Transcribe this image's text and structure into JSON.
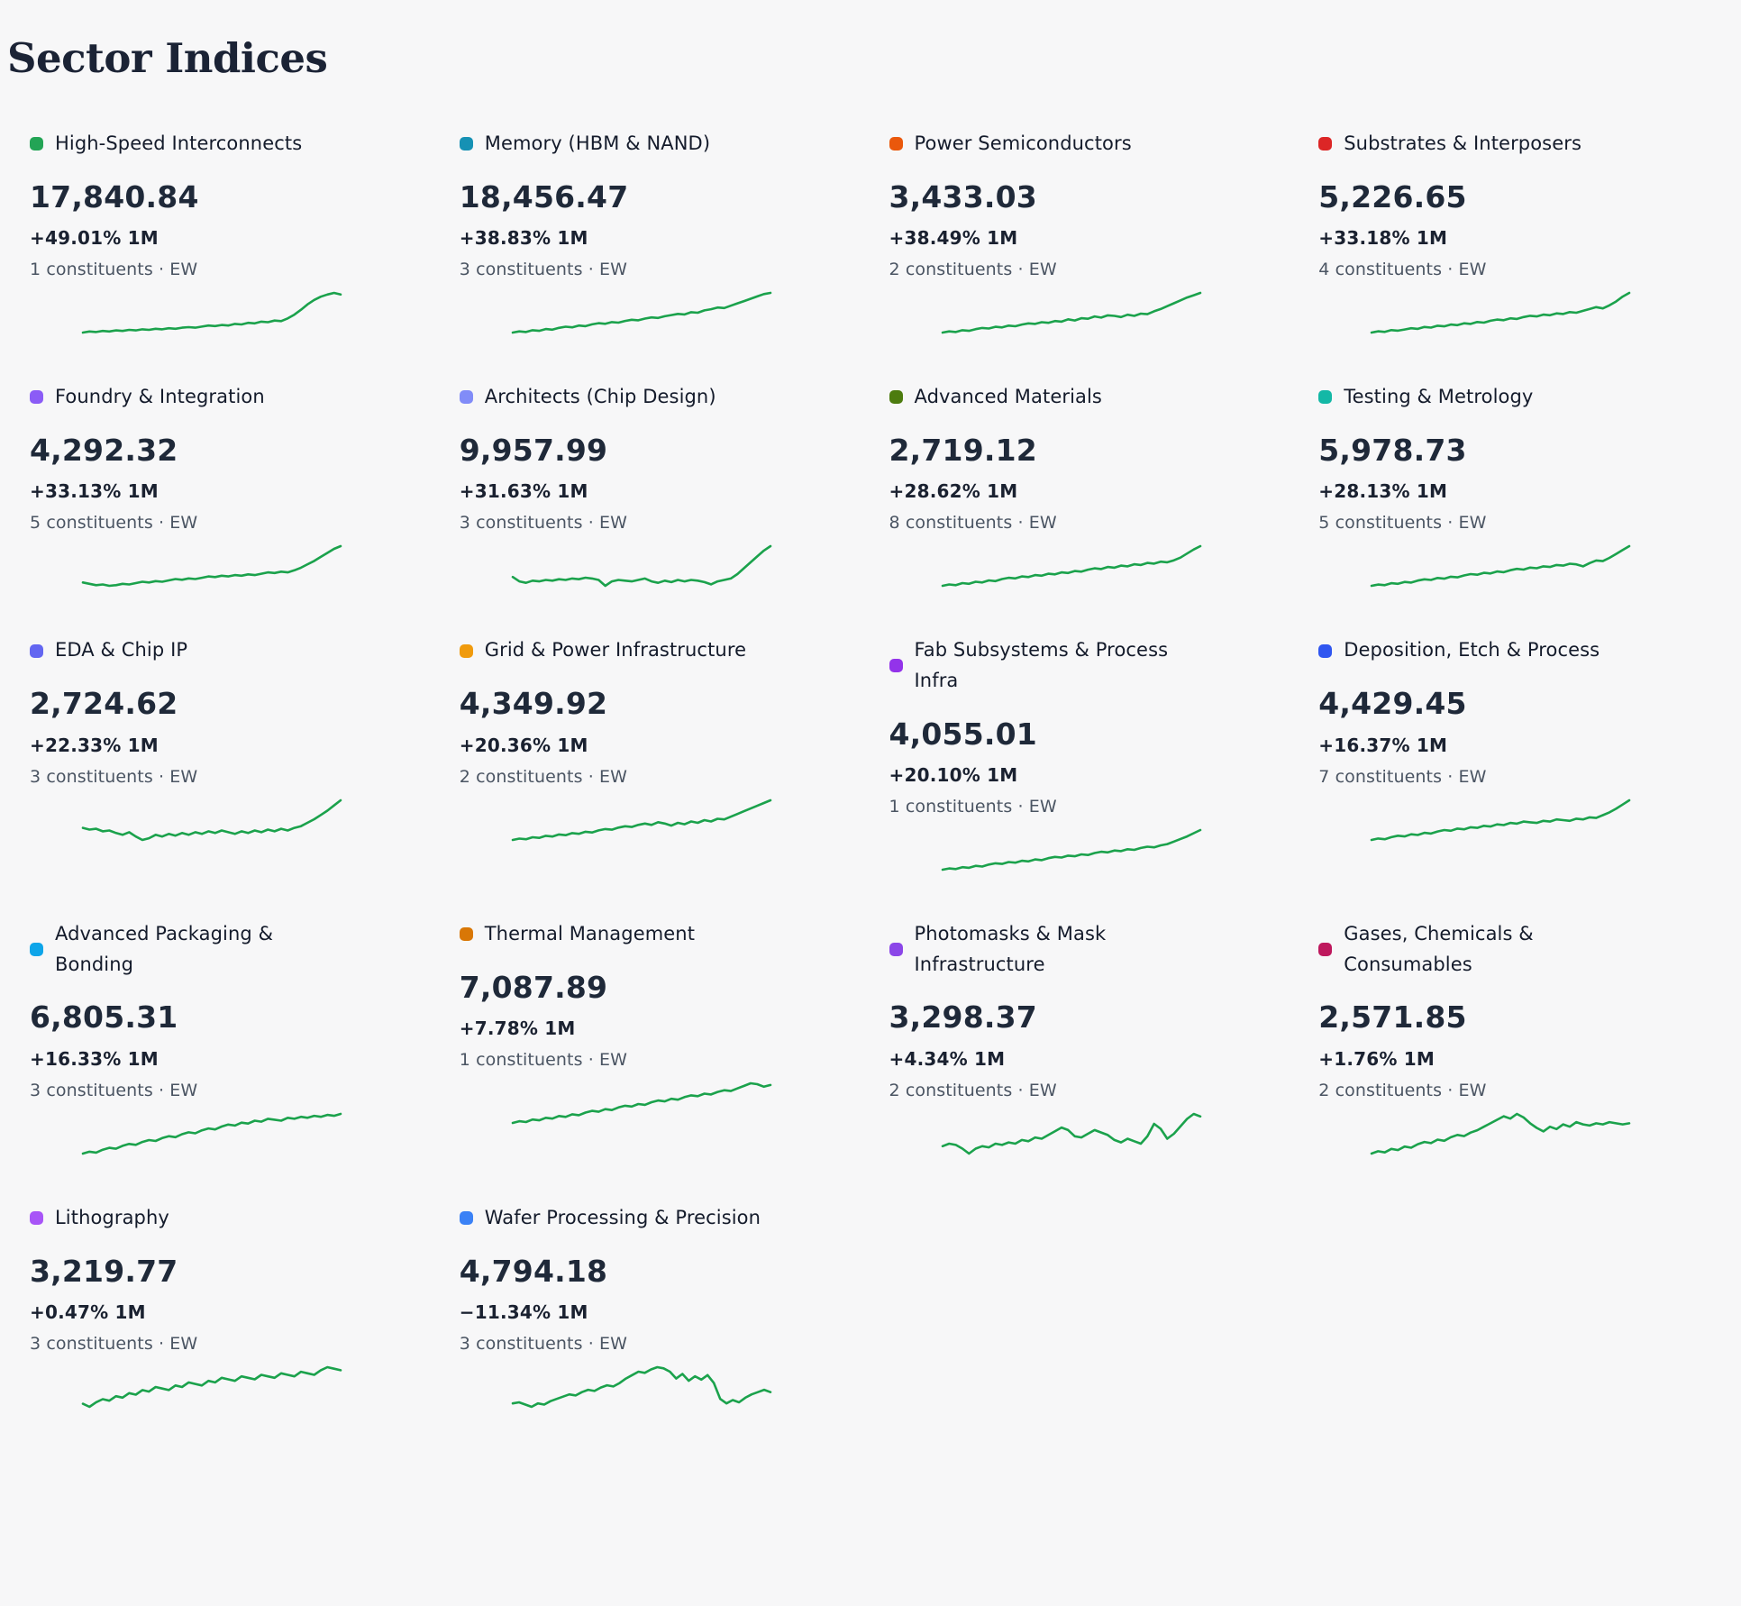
{
  "page": {
    "title": "Sector Indices",
    "background": "#f7f7f8",
    "spark_color": "#1ba24c"
  },
  "sectors": [
    {
      "name": "High-Speed Interconnects",
      "dot_color": "#23a455",
      "value": "17,840.84",
      "change": "+49.01% 1M",
      "meta": "1 constituents · EW",
      "spark": [
        10,
        12,
        11,
        13,
        12,
        14,
        13,
        15,
        14,
        16,
        15,
        17,
        16,
        18,
        17,
        19,
        20,
        19,
        21,
        23,
        22,
        24,
        23,
        26,
        25,
        28,
        27,
        30,
        29,
        32,
        31,
        36,
        43,
        52,
        62,
        70,
        76,
        80,
        83,
        80
      ]
    },
    {
      "name": "Memory (HBM & NAND)",
      "dot_color": "#1691b4",
      "value": "18,456.47",
      "change": "+38.83% 1M",
      "meta": "3 constituents · EW",
      "spark": [
        12,
        14,
        13,
        16,
        15,
        18,
        17,
        20,
        22,
        21,
        24,
        23,
        26,
        28,
        27,
        30,
        29,
        32,
        34,
        33,
        36,
        38,
        37,
        40,
        42,
        44,
        43,
        47,
        46,
        50,
        52,
        55,
        54,
        58,
        62,
        66,
        70,
        74,
        78,
        80
      ]
    },
    {
      "name": "Power Semiconductors",
      "dot_color": "#ea580c",
      "value": "3,433.03",
      "change": "+38.49% 1M",
      "meta": "2 constituents · EW",
      "spark": [
        15,
        17,
        16,
        19,
        18,
        21,
        23,
        22,
        25,
        24,
        27,
        26,
        29,
        31,
        30,
        33,
        32,
        35,
        34,
        38,
        36,
        40,
        39,
        43,
        41,
        45,
        44,
        42,
        46,
        44,
        48,
        47,
        52,
        56,
        61,
        66,
        71,
        76,
        80,
        84
      ]
    },
    {
      "name": "Substrates & Interposers",
      "dot_color": "#dc2626",
      "value": "5,226.65",
      "change": "+33.18% 1M",
      "meta": "4 constituents · EW",
      "spark": [
        14,
        16,
        15,
        18,
        17,
        19,
        21,
        20,
        23,
        22,
        25,
        24,
        27,
        26,
        29,
        28,
        31,
        30,
        33,
        35,
        34,
        37,
        36,
        39,
        41,
        40,
        43,
        42,
        45,
        44,
        47,
        46,
        49,
        52,
        55,
        53,
        58,
        64,
        72,
        78
      ]
    },
    {
      "name": "Foundry & Integration",
      "dot_color": "#8b5cf6",
      "value": "4,292.32",
      "change": "+33.13% 1M",
      "meta": "5 constituents · EW",
      "spark": [
        18,
        16,
        14,
        15,
        13,
        14,
        16,
        15,
        17,
        19,
        18,
        20,
        19,
        21,
        23,
        22,
        24,
        23,
        25,
        27,
        26,
        28,
        27,
        29,
        28,
        30,
        29,
        31,
        33,
        32,
        34,
        33,
        36,
        40,
        45,
        50,
        56,
        62,
        68,
        72
      ]
    },
    {
      "name": "Architects (Chip Design)",
      "dot_color": "#818cf8",
      "value": "9,957.99",
      "change": "+31.63% 1M",
      "meta": "3 constituents · EW",
      "spark": [
        34,
        28,
        26,
        29,
        28,
        30,
        29,
        31,
        30,
        32,
        31,
        33,
        32,
        30,
        22,
        28,
        30,
        29,
        28,
        30,
        32,
        28,
        26,
        29,
        27,
        30,
        28,
        30,
        29,
        27,
        24,
        28,
        30,
        32,
        38,
        46,
        54,
        62,
        70,
        76
      ]
    },
    {
      "name": "Advanced Materials",
      "dot_color": "#4d7c0f",
      "value": "2,719.12",
      "change": "+28.62% 1M",
      "meta": "8 constituents · EW",
      "spark": [
        16,
        18,
        17,
        20,
        19,
        22,
        21,
        24,
        23,
        26,
        28,
        27,
        30,
        29,
        32,
        31,
        34,
        33,
        36,
        35,
        38,
        37,
        40,
        42,
        41,
        44,
        43,
        46,
        45,
        48,
        47,
        50,
        49,
        52,
        51,
        54,
        58,
        64,
        70,
        75
      ]
    },
    {
      "name": "Testing & Metrology",
      "dot_color": "#14b8a6",
      "value": "5,978.73",
      "change": "+28.13% 1M",
      "meta": "5 constituents · EW",
      "spark": [
        15,
        17,
        16,
        19,
        18,
        21,
        20,
        23,
        25,
        24,
        27,
        26,
        29,
        28,
        31,
        33,
        32,
        35,
        34,
        37,
        36,
        39,
        41,
        40,
        43,
        42,
        45,
        44,
        47,
        46,
        49,
        48,
        45,
        50,
        54,
        53,
        58,
        64,
        70,
        76
      ]
    },
    {
      "name": "EDA & Chip IP",
      "dot_color": "#6366f1",
      "value": "2,724.62",
      "change": "+22.33% 1M",
      "meta": "3 constituents · EW",
      "spark": [
        32,
        30,
        31,
        28,
        29,
        26,
        24,
        27,
        22,
        18,
        20,
        24,
        22,
        25,
        23,
        26,
        24,
        27,
        25,
        28,
        26,
        29,
        27,
        25,
        28,
        26,
        29,
        27,
        30,
        28,
        31,
        29,
        32,
        34,
        38,
        42,
        47,
        52,
        58,
        64
      ]
    },
    {
      "name": "Grid & Power Infrastructure",
      "dot_color": "#f09b0d",
      "value": "4,349.92",
      "change": "+20.36% 1M",
      "meta": "2 constituents · EW",
      "spark": [
        14,
        16,
        15,
        18,
        17,
        20,
        19,
        22,
        21,
        24,
        23,
        26,
        25,
        28,
        30,
        29,
        32,
        34,
        33,
        36,
        38,
        36,
        40,
        38,
        35,
        39,
        37,
        41,
        39,
        43,
        41,
        45,
        44,
        48,
        52,
        56,
        60,
        64,
        68,
        72
      ]
    },
    {
      "name": "Fab Subsystems & Process Infra",
      "dot_color": "#9333ea",
      "value": "4,055.01",
      "change": "+20.10% 1M",
      "meta": "1 constituents · EW",
      "spark": [
        16,
        18,
        17,
        20,
        19,
        22,
        21,
        24,
        26,
        25,
        28,
        27,
        30,
        29,
        32,
        31,
        34,
        36,
        35,
        38,
        37,
        40,
        39,
        42,
        44,
        43,
        46,
        45,
        48,
        47,
        50,
        52,
        51,
        54,
        56,
        60,
        64,
        68,
        73,
        78
      ]
    },
    {
      "name": "Deposition, Etch & Process",
      "dot_color": "#3056f0",
      "value": "4,429.45",
      "change": "+16.37% 1M",
      "meta": "7 constituents · EW",
      "spark": [
        18,
        20,
        19,
        22,
        24,
        23,
        26,
        25,
        28,
        27,
        30,
        32,
        31,
        34,
        33,
        36,
        35,
        38,
        37,
        40,
        39,
        42,
        41,
        44,
        43,
        42,
        45,
        44,
        47,
        46,
        45,
        48,
        47,
        50,
        49,
        53,
        57,
        62,
        68,
        74
      ]
    },
    {
      "name": "Advanced Packaging & Bonding",
      "dot_color": "#0ea5e9",
      "value": "6,805.31",
      "change": "+16.33% 1M",
      "meta": "3 constituents · EW",
      "spark": [
        12,
        14,
        13,
        16,
        18,
        17,
        20,
        22,
        21,
        24,
        26,
        25,
        28,
        30,
        29,
        32,
        34,
        33,
        36,
        38,
        37,
        40,
        42,
        41,
        44,
        43,
        46,
        45,
        48,
        47,
        46,
        49,
        48,
        50,
        49,
        51,
        50,
        52,
        51,
        53
      ]
    },
    {
      "name": "Thermal Management",
      "dot_color": "#d97706",
      "value": "7,087.89",
      "change": "+7.78% 1M",
      "meta": "1 constituents · EW",
      "spark": [
        20,
        22,
        21,
        24,
        23,
        26,
        25,
        28,
        27,
        30,
        29,
        32,
        34,
        33,
        36,
        35,
        38,
        40,
        39,
        42,
        41,
        44,
        46,
        45,
        48,
        47,
        50,
        52,
        51,
        54,
        53,
        56,
        58,
        57,
        60,
        63,
        66,
        65,
        62,
        64
      ]
    },
    {
      "name": "Photomasks & Mask\nInfrastructure",
      "dot_color": "#8b46e8",
      "value": "3,298.37",
      "change": "+4.34% 1M",
      "meta": "2 constituents · EW",
      "spark": [
        30,
        32,
        31,
        28,
        24,
        28,
        30,
        29,
        32,
        31,
        33,
        32,
        35,
        34,
        37,
        36,
        39,
        42,
        45,
        43,
        38,
        37,
        40,
        43,
        41,
        39,
        35,
        33,
        36,
        34,
        32,
        38,
        48,
        44,
        36,
        40,
        46,
        52,
        56,
        54
      ]
    },
    {
      "name": "Gases, Chemicals &\nConsumables",
      "dot_color": "#be185d",
      "value": "2,571.85",
      "change": "+1.76% 1M",
      "meta": "2 constituents · EW",
      "spark": [
        22,
        24,
        23,
        26,
        25,
        28,
        27,
        30,
        32,
        31,
        34,
        33,
        36,
        38,
        37,
        40,
        42,
        45,
        48,
        51,
        54,
        52,
        56,
        53,
        48,
        44,
        41,
        45,
        43,
        47,
        45,
        49,
        47,
        46,
        48,
        47,
        49,
        48,
        47,
        48
      ]
    },
    {
      "name": "Lithography",
      "dot_color": "#a855f7",
      "value": "3,219.77",
      "change": "+0.47% 1M",
      "meta": "3 constituents · EW",
      "spark": [
        24,
        22,
        25,
        27,
        26,
        29,
        28,
        31,
        30,
        33,
        32,
        35,
        34,
        33,
        36,
        35,
        38,
        37,
        36,
        39,
        38,
        41,
        40,
        39,
        42,
        41,
        40,
        43,
        42,
        41,
        44,
        43,
        42,
        45,
        44,
        43,
        46,
        48,
        47,
        46
      ]
    },
    {
      "name": "Wafer Processing & Precision",
      "dot_color": "#3b82f6",
      "value": "4,794.18",
      "change": "−11.34% 1M",
      "meta": "3 constituents · EW",
      "spark": [
        30,
        31,
        29,
        27,
        30,
        29,
        32,
        34,
        36,
        38,
        37,
        40,
        42,
        41,
        44,
        46,
        45,
        48,
        52,
        55,
        58,
        57,
        60,
        62,
        61,
        58,
        52,
        56,
        50,
        54,
        51,
        55,
        48,
        34,
        30,
        33,
        31,
        35,
        38,
        40,
        42,
        40
      ]
    }
  ]
}
